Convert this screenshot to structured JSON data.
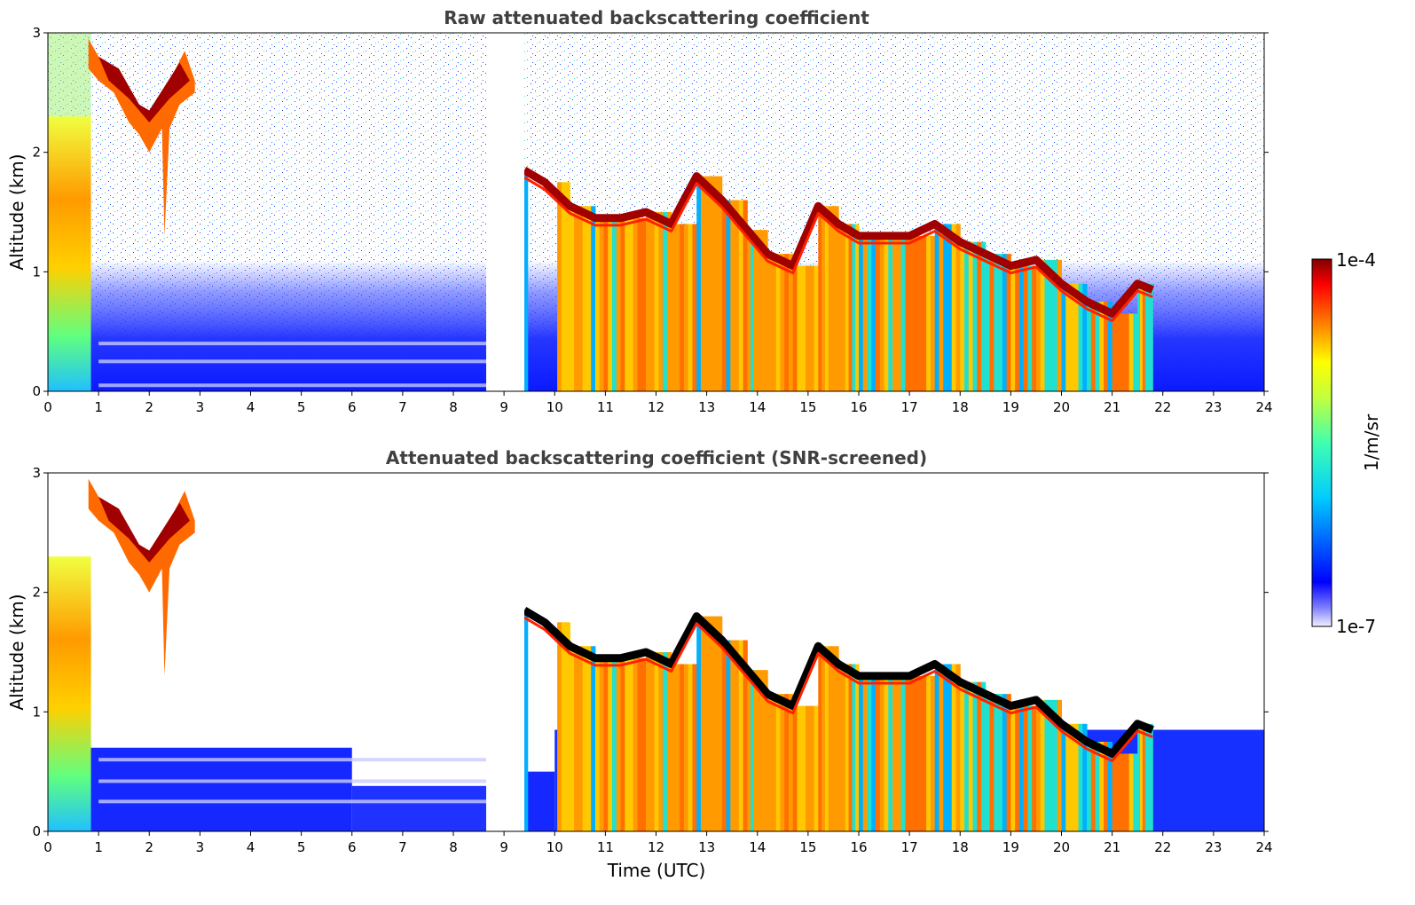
{
  "chart_data": [
    {
      "type": "heatmap",
      "title": "Raw attenuated backscattering coefficient",
      "xlabel": "",
      "ylabel": "Altitude (km)",
      "xlim": [
        0,
        24
      ],
      "ylim": [
        0,
        3
      ],
      "xticks": [
        "0",
        "1",
        "2",
        "3",
        "4",
        "5",
        "6",
        "7",
        "8",
        "9",
        "10",
        "11",
        "12",
        "13",
        "14",
        "15",
        "16",
        "17",
        "18",
        "19",
        "20",
        "21",
        "22",
        "23",
        "24"
      ],
      "yticks": [
        "0",
        "1",
        "2",
        "3"
      ],
      "data_gap_hours": [
        8.65,
        9.4
      ],
      "cloud_base_km": [
        [
          9.4,
          1.85
        ],
        [
          9.8,
          1.75
        ],
        [
          10.3,
          1.55
        ],
        [
          10.8,
          1.45
        ],
        [
          11.3,
          1.45
        ],
        [
          11.8,
          1.5
        ],
        [
          12.3,
          1.4
        ],
        [
          12.8,
          1.8
        ],
        [
          13.3,
          1.6
        ],
        [
          13.8,
          1.35
        ],
        [
          14.2,
          1.15
        ],
        [
          14.7,
          1.05
        ],
        [
          15.2,
          1.55
        ],
        [
          15.6,
          1.4
        ],
        [
          16.0,
          1.3
        ],
        [
          16.5,
          1.3
        ],
        [
          17.0,
          1.3
        ],
        [
          17.5,
          1.4
        ],
        [
          18.0,
          1.25
        ],
        [
          18.5,
          1.15
        ],
        [
          19.0,
          1.05
        ],
        [
          19.5,
          1.1
        ],
        [
          20.0,
          0.9
        ],
        [
          20.5,
          0.75
        ],
        [
          21.0,
          0.65
        ],
        [
          21.5,
          0.9
        ],
        [
          21.8,
          0.85
        ]
      ],
      "grid": false
    },
    {
      "type": "heatmap",
      "title": "Attenuated backscattering coefficient (SNR-screened)",
      "xlabel": "Time (UTC)",
      "ylabel": "Altitude (km)",
      "xlim": [
        0,
        24
      ],
      "ylim": [
        0,
        3
      ],
      "xticks": [
        "0",
        "1",
        "2",
        "3",
        "4",
        "5",
        "6",
        "7",
        "8",
        "9",
        "10",
        "11",
        "12",
        "13",
        "14",
        "15",
        "16",
        "17",
        "18",
        "19",
        "20",
        "21",
        "22",
        "23",
        "24"
      ],
      "yticks": [
        "0",
        "1",
        "2",
        "3"
      ],
      "data_gap_hours": [
        8.65,
        9.4
      ],
      "grid": false
    }
  ],
  "colorbar": {
    "label": "1/m/sr",
    "max_label": "1e-4",
    "min_label": "1e-7",
    "colormap": "jet"
  }
}
